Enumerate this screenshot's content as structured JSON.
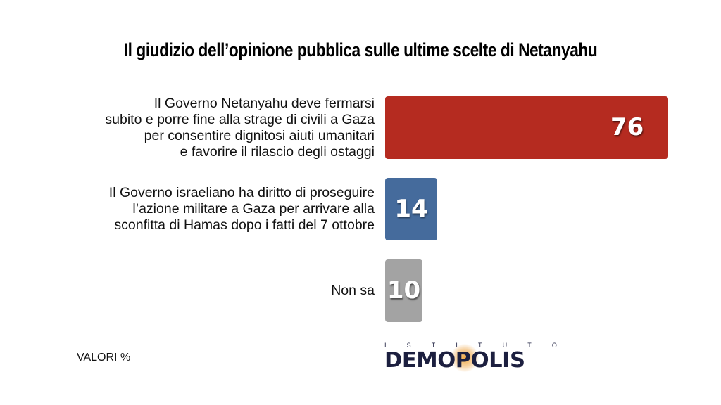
{
  "chart_data": {
    "type": "bar",
    "orientation": "horizontal",
    "title": "Il giudizio dell’opinione pubblica sulle ultime scelte di Netanyahu",
    "categories": [
      "Il Governo Netanyahu deve fermarsi\nsubito e porre fine alla strage di civili a Gaza\nper consentire dignitosi aiuti umanitari\ne favorire il rilascio degli ostaggi",
      "Il Governo israeliano ha diritto di proseguire\nl’azione militare a Gaza per arrivare alla\nsconfitta di Hamas dopo i fatti del 7 ottobre",
      "Non sa"
    ],
    "values": [
      76,
      14,
      10
    ],
    "value_labels": [
      "76",
      "14",
      "10"
    ],
    "colors": [
      "#b52b20",
      "#456b9c",
      "#a3a3a3"
    ],
    "xlabel": "",
    "ylabel": "",
    "xlim": [
      0,
      76
    ],
    "grid": false,
    "legend": "none"
  },
  "footnote": "VALORI %",
  "logo": {
    "top_text": [
      "I",
      "S",
      "T",
      "I",
      "T",
      "U",
      "T",
      "O"
    ],
    "main_text": "DEMOPOLIS"
  }
}
